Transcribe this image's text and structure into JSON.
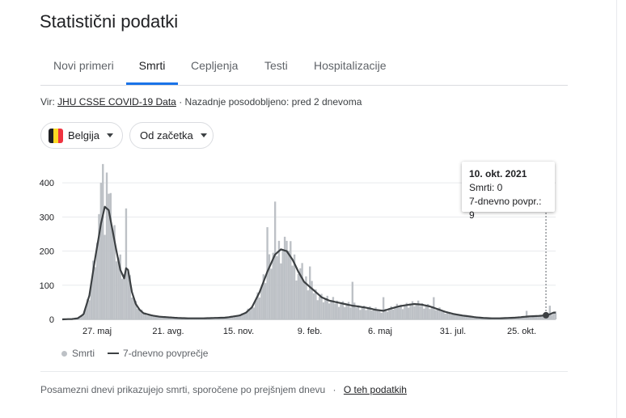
{
  "page_title": "Statistični podatki",
  "tabs": [
    "Novi primeri",
    "Smrti",
    "Cepljenja",
    "Testi",
    "Hospitalizacije"
  ],
  "active_tab": "Smrti",
  "source": {
    "prefix": "Vir:",
    "link": "JHU CSSE COVID-19 Data",
    "separator": "·",
    "updated": "Nazadnje posodobljeno: pred 2 dnevoma"
  },
  "filters": {
    "country": "Belgija",
    "range": "Od začetka"
  },
  "flag_colors": [
    "#202124",
    "#fdda24",
    "#ef3340"
  ],
  "tooltip": {
    "date": "10. okt. 2021",
    "deaths": "Smrti: 0",
    "avg": "7-dnevno povpr.: 9"
  },
  "legend": {
    "bars": "Smrti",
    "line": "7-dnevno povprečje"
  },
  "footer": {
    "text": "Posamezni dnevi prikazujejo smrti, sporočene po prejšnjem dnevu",
    "separator": "·",
    "link": "O teh podatkih"
  },
  "chart_data": {
    "type": "bar",
    "y_ticks": [
      "0",
      "100",
      "200",
      "300",
      "400"
    ],
    "ylim": [
      0,
      450
    ],
    "x_ticks": [
      "27. maj",
      "21. avg.",
      "15. nov.",
      "9. feb.",
      "6. maj",
      "31. jul.",
      "25. okt."
    ],
    "bar_color": "#bdc1c6",
    "line_color": "#3c4043",
    "series": [
      {
        "name": "7-dnevno povprečje",
        "points": [
          [
            0,
            0
          ],
          [
            5,
            1
          ],
          [
            8,
            3
          ],
          [
            11,
            15
          ],
          [
            14,
            70
          ],
          [
            17,
            180
          ],
          [
            20,
            280
          ],
          [
            22,
            330
          ],
          [
            24,
            320
          ],
          [
            26,
            260
          ],
          [
            28,
            200
          ],
          [
            30,
            145
          ],
          [
            32,
            120
          ],
          [
            33,
            150
          ],
          [
            34,
            145
          ],
          [
            36,
            80
          ],
          [
            38,
            45
          ],
          [
            40,
            28
          ],
          [
            42,
            18
          ],
          [
            46,
            12
          ],
          [
            50,
            8
          ],
          [
            55,
            6
          ],
          [
            60,
            4
          ],
          [
            66,
            3
          ],
          [
            72,
            3
          ],
          [
            78,
            4
          ],
          [
            84,
            5
          ],
          [
            88,
            8
          ],
          [
            92,
            12
          ],
          [
            95,
            20
          ],
          [
            98,
            35
          ],
          [
            102,
            80
          ],
          [
            106,
            140
          ],
          [
            110,
            190
          ],
          [
            113,
            205
          ],
          [
            116,
            200
          ],
          [
            119,
            175
          ],
          [
            122,
            140
          ],
          [
            125,
            110
          ],
          [
            128,
            95
          ],
          [
            131,
            80
          ],
          [
            134,
            65
          ],
          [
            138,
            55
          ],
          [
            142,
            50
          ],
          [
            146,
            45
          ],
          [
            150,
            40
          ],
          [
            154,
            37
          ],
          [
            158,
            33
          ],
          [
            162,
            28
          ],
          [
            166,
            25
          ],
          [
            170,
            32
          ],
          [
            174,
            38
          ],
          [
            178,
            42
          ],
          [
            182,
            45
          ],
          [
            186,
            43
          ],
          [
            190,
            38
          ],
          [
            194,
            30
          ],
          [
            198,
            22
          ],
          [
            202,
            16
          ],
          [
            206,
            12
          ],
          [
            210,
            9
          ],
          [
            214,
            6
          ],
          [
            218,
            4
          ],
          [
            222,
            3
          ],
          [
            226,
            3
          ],
          [
            230,
            4
          ],
          [
            234,
            5
          ],
          [
            238,
            7
          ],
          [
            242,
            9
          ],
          [
            246,
            10
          ],
          [
            250,
            12
          ],
          [
            252,
            15
          ],
          [
            254,
            20
          ]
        ]
      },
      {
        "name": "Smrti",
        "spikes": [
          [
            20,
            400
          ],
          [
            21,
            455
          ],
          [
            23,
            430
          ],
          [
            25,
            370
          ],
          [
            30,
            190
          ],
          [
            33,
            325
          ],
          [
            110,
            345
          ],
          [
            106,
            270
          ],
          [
            116,
            230
          ],
          [
            120,
            190
          ],
          [
            124,
            165
          ],
          [
            128,
            155
          ],
          [
            150,
            110
          ],
          [
            166,
            65
          ],
          [
            192,
            65
          ],
          [
            240,
            25
          ],
          [
            252,
            40
          ]
        ]
      }
    ],
    "highlight_index": 250
  }
}
